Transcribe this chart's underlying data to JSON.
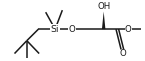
{
  "bg_color": "#ffffff",
  "line_color": "#1a1a1a",
  "lw": 1.1,
  "font_size": 6.2,
  "xlim": [
    0.0,
    1.0
  ],
  "ylim": [
    0.05,
    0.95
  ]
}
